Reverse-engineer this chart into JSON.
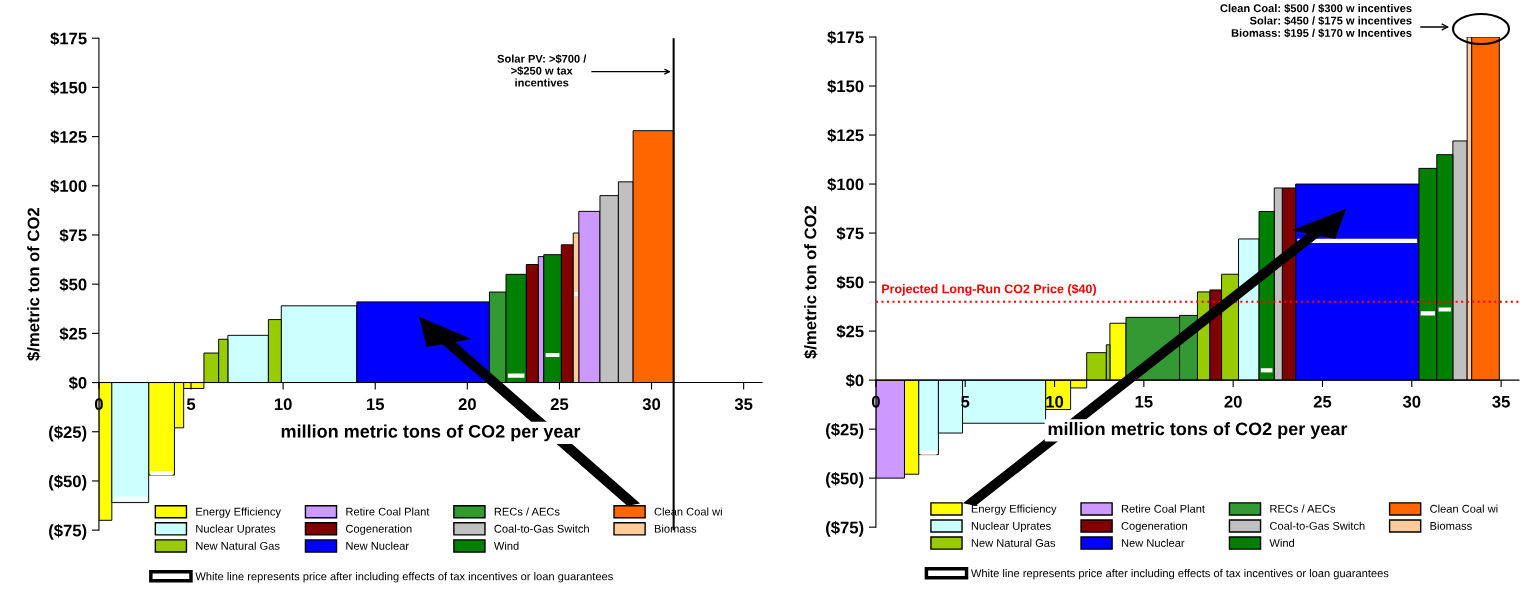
{
  "chart_data": [
    {
      "type": "histogram",
      "xlabel": "million metric tons of CO2 per year",
      "ylabel": "$/metric ton of CO2",
      "bins": [
        0,
        0.7,
        2.7,
        4.1,
        4.6,
        5.7,
        6.5,
        7.0,
        9.2,
        9.9,
        14.0,
        21.2,
        22.1,
        23.2,
        23.85,
        24.15,
        25.1,
        25.75,
        26.05,
        27.2,
        28.2,
        29.0,
        31.2
      ],
      "xlim": [
        0,
        36
      ],
      "xticks": [
        0,
        5,
        10,
        15,
        20,
        25,
        30,
        35
      ],
      "ylim": [
        -75,
        175
      ],
      "yticks": [
        {
          "value": 175,
          "label": "$175"
        },
        {
          "value": 150,
          "label": "$150"
        },
        {
          "value": 125,
          "label": "$125"
        },
        {
          "value": 100,
          "label": "$100"
        },
        {
          "value": 75,
          "label": "$75"
        },
        {
          "value": 50,
          "label": "$50"
        },
        {
          "value": 25,
          "label": "$25"
        },
        {
          "value": 0,
          "label": "$0"
        },
        {
          "value": -25,
          "label": "($25)"
        },
        {
          "value": -50,
          "label": "($50)"
        },
        {
          "value": -75,
          "label": "($75)"
        }
      ],
      "legend": "bottom",
      "series": [
        {
          "name": "Energy Efficiency",
          "color": "#ffff00",
          "values": [
            -70,
            null,
            -47,
            -23,
            -3,
            null,
            null,
            null,
            null,
            null,
            null,
            null,
            null,
            null,
            null,
            null,
            null,
            null,
            null,
            null,
            null,
            null
          ]
        },
        {
          "name": "Nuclear Uprates",
          "color": "#ccffff",
          "values": [
            null,
            -61,
            null,
            null,
            null,
            null,
            null,
            24,
            null,
            39,
            null,
            null,
            null,
            null,
            null,
            null,
            null,
            null,
            null,
            null,
            null,
            null
          ]
        },
        {
          "name": "New Natural Gas",
          "color": "#99cc00",
          "values": [
            null,
            null,
            null,
            null,
            null,
            15,
            22,
            null,
            32,
            null,
            null,
            null,
            null,
            null,
            null,
            null,
            null,
            null,
            null,
            null,
            null,
            null
          ]
        },
        {
          "name": "Retire Coal Plant",
          "color": "#cc99ff",
          "values": [
            null,
            null,
            null,
            null,
            null,
            null,
            null,
            null,
            null,
            null,
            null,
            null,
            null,
            null,
            64,
            null,
            null,
            null,
            87,
            null,
            null,
            null
          ]
        },
        {
          "name": "Cogeneration",
          "color": "#800000",
          "values": [
            null,
            null,
            null,
            null,
            null,
            null,
            null,
            null,
            null,
            null,
            null,
            null,
            null,
            60,
            null,
            null,
            70,
            null,
            null,
            null,
            null,
            null
          ]
        },
        {
          "name": "New Nuclear",
          "color": "#0000ff",
          "values": [
            null,
            null,
            null,
            null,
            null,
            null,
            null,
            null,
            null,
            null,
            41,
            null,
            null,
            null,
            null,
            null,
            null,
            null,
            null,
            null,
            null,
            null
          ]
        },
        {
          "name": "RECs / AECs",
          "color": "#339933",
          "values": [
            null,
            null,
            null,
            null,
            null,
            null,
            null,
            null,
            null,
            null,
            null,
            46,
            null,
            null,
            null,
            null,
            null,
            null,
            null,
            null,
            null,
            null
          ]
        },
        {
          "name": "Coal-to-Gas Switch",
          "color": "#c0c0c0",
          "values": [
            null,
            null,
            null,
            null,
            null,
            null,
            null,
            null,
            null,
            null,
            null,
            null,
            null,
            null,
            null,
            null,
            null,
            null,
            null,
            95,
            102,
            null
          ]
        },
        {
          "name": "Wind",
          "color": "#008000",
          "values": [
            null,
            null,
            null,
            null,
            null,
            null,
            null,
            null,
            null,
            null,
            null,
            null,
            55,
            null,
            null,
            65,
            null,
            null,
            null,
            null,
            null,
            null
          ]
        },
        {
          "name": "Clean Coal wi",
          "color": "#ff6600",
          "values": [
            null,
            null,
            null,
            null,
            null,
            null,
            null,
            null,
            null,
            null,
            null,
            null,
            null,
            null,
            null,
            null,
            null,
            null,
            null,
            null,
            null,
            128
          ]
        },
        {
          "name": "Biomass",
          "color": "#ffcc99",
          "values": [
            null,
            null,
            null,
            null,
            null,
            null,
            null,
            null,
            null,
            null,
            null,
            null,
            null,
            null,
            null,
            null,
            null,
            76,
            null,
            null,
            null,
            null
          ]
        },
        {
          "name": "White line represents price after including effects of tax incentives or loan guarantees",
          "type": "line",
          "color": "#ffffff",
          "x": [
            0.8,
            2.6
          ],
          "values": [
            -59,
            -59
          ]
        },
        {
          "type": "line",
          "color": "#ffffff",
          "x": [
            2.8,
            4.0
          ],
          "values": [
            -46,
            -46
          ]
        },
        {
          "type": "line",
          "color": "#ffffff",
          "x": [
            22.2,
            23.1
          ],
          "values": [
            3.5,
            3.5
          ]
        },
        {
          "type": "line",
          "color": "#ffffff",
          "x": [
            24.25,
            25.0
          ],
          "values": [
            14,
            14
          ]
        },
        {
          "type": "line",
          "color": "#ffffff",
          "x": [
            25.8,
            26.0
          ],
          "values": [
            45,
            45
          ]
        }
      ],
      "ref_lines": [
        {
          "axis": "x",
          "value": 31.2,
          "label": null,
          "color": "#000000",
          "line_style": "solid"
        }
      ],
      "annotations": [
        {
          "text": "Solar PV: >$700 /\n>$250 w tax\nincentives",
          "x": 31.2,
          "y": 158
        }
      ]
    },
    {
      "type": "histogram",
      "xlabel": "million metric tons of CO2 per year",
      "ylabel": "$/metric ton of CO2",
      "bins": [
        0,
        1.6,
        2.4,
        3.5,
        4.85,
        9.5,
        10.9,
        11.8,
        12.9,
        13.1,
        14.0,
        17.0,
        18.0,
        18.7,
        19.35,
        20.3,
        21.45,
        22.3,
        22.75,
        23.5,
        30.4,
        31.4,
        32.3,
        33.1,
        33.35,
        34.9
      ],
      "xlim": [
        0,
        36
      ],
      "xticks": [
        0,
        5,
        10,
        15,
        20,
        25,
        30,
        35
      ],
      "ylim": [
        -75,
        175
      ],
      "yticks": [
        {
          "value": 175,
          "label": "$175"
        },
        {
          "value": 150,
          "label": "$150"
        },
        {
          "value": 125,
          "label": "$125"
        },
        {
          "value": 100,
          "label": "$100"
        },
        {
          "value": 75,
          "label": "$75"
        },
        {
          "value": 50,
          "label": "$50"
        },
        {
          "value": 25,
          "label": "$25"
        },
        {
          "value": 0,
          "label": "$0"
        },
        {
          "value": -25,
          "label": "($25)"
        },
        {
          "value": -50,
          "label": "($50)"
        },
        {
          "value": -75,
          "label": "($75)"
        }
      ],
      "legend": "bottom",
      "series": [
        {
          "name": "Energy Efficiency",
          "color": "#ffff00",
          "values": [
            null,
            -48,
            null,
            null,
            null,
            -15,
            -4,
            null,
            null,
            29,
            null,
            null,
            null,
            null,
            null,
            null,
            null,
            null,
            null,
            null,
            null,
            null,
            null,
            null,
            null
          ]
        },
        {
          "name": "Nuclear Uprates",
          "color": "#ccffff",
          "values": [
            null,
            null,
            -38,
            -27,
            -22,
            null,
            null,
            null,
            null,
            null,
            null,
            null,
            null,
            null,
            null,
            72,
            null,
            null,
            null,
            null,
            null,
            null,
            null,
            null,
            null
          ]
        },
        {
          "name": "New Natural Gas",
          "color": "#99cc00",
          "values": [
            null,
            null,
            null,
            null,
            null,
            null,
            null,
            14,
            18,
            null,
            null,
            null,
            45,
            null,
            54,
            null,
            null,
            null,
            null,
            null,
            null,
            null,
            null,
            null,
            null
          ]
        },
        {
          "name": "Retire Coal Plant",
          "color": "#cc99ff",
          "values": [
            -50,
            null,
            null,
            null,
            null,
            null,
            null,
            null,
            null,
            null,
            null,
            null,
            null,
            null,
            null,
            null,
            null,
            null,
            null,
            null,
            null,
            null,
            null,
            null,
            null
          ]
        },
        {
          "name": "Cogeneration",
          "color": "#800000",
          "values": [
            null,
            null,
            null,
            null,
            null,
            null,
            null,
            null,
            null,
            null,
            null,
            null,
            null,
            46,
            null,
            null,
            null,
            null,
            98,
            null,
            null,
            null,
            null,
            null,
            null
          ]
        },
        {
          "name": "New Nuclear",
          "color": "#0000ff",
          "values": [
            null,
            null,
            null,
            null,
            null,
            null,
            null,
            null,
            null,
            null,
            null,
            null,
            null,
            null,
            null,
            null,
            null,
            null,
            null,
            100,
            null,
            null,
            null,
            null,
            null
          ]
        },
        {
          "name": "RECs / AECs",
          "color": "#339933",
          "values": [
            null,
            null,
            null,
            null,
            null,
            null,
            null,
            null,
            null,
            null,
            32,
            33,
            null,
            null,
            null,
            null,
            null,
            null,
            null,
            null,
            null,
            null,
            null,
            null,
            null
          ]
        },
        {
          "name": "Coal-to-Gas Switch",
          "color": "#c0c0c0",
          "values": [
            null,
            null,
            null,
            null,
            null,
            null,
            null,
            null,
            null,
            null,
            null,
            null,
            null,
            null,
            null,
            null,
            null,
            98,
            null,
            null,
            null,
            null,
            122,
            null,
            null
          ]
        },
        {
          "name": "Wind",
          "color": "#008000",
          "values": [
            null,
            null,
            null,
            null,
            null,
            null,
            null,
            null,
            null,
            null,
            null,
            null,
            null,
            null,
            null,
            null,
            86,
            null,
            null,
            null,
            108,
            115,
            null,
            null,
            null
          ]
        },
        {
          "name": "Clean Coal wi",
          "color": "#ff6600",
          "values": [
            null,
            null,
            null,
            null,
            null,
            null,
            null,
            null,
            null,
            null,
            null,
            null,
            null,
            null,
            null,
            null,
            null,
            null,
            null,
            null,
            null,
            null,
            null,
            null,
            175
          ]
        },
        {
          "name": "Biomass",
          "color": "#ffcc99",
          "values": [
            null,
            null,
            null,
            null,
            null,
            null,
            null,
            null,
            null,
            null,
            null,
            null,
            null,
            null,
            null,
            null,
            null,
            null,
            null,
            null,
            null,
            null,
            null,
            175,
            null
          ]
        },
        {
          "name": "White line represents price after including effects of tax incentives or loan guarantees",
          "type": "line",
          "color": "#ffffff",
          "x": [
            2.5,
            3.4
          ],
          "values": [
            -37,
            -37
          ]
        },
        {
          "type": "line",
          "color": "#ffffff",
          "x": [
            21.55,
            22.2
          ],
          "values": [
            5,
            5
          ]
        },
        {
          "type": "line",
          "color": "#ffffff",
          "x": [
            23.6,
            30.3
          ],
          "values": [
            71,
            71
          ]
        },
        {
          "type": "line",
          "color": "#ffffff",
          "x": [
            30.5,
            31.3
          ],
          "values": [
            34,
            34
          ]
        },
        {
          "type": "line",
          "color": "#ffffff",
          "x": [
            31.5,
            32.2
          ],
          "values": [
            36,
            36
          ]
        }
      ],
      "ref_lines": [
        {
          "axis": "y",
          "value": 40,
          "label": "Projected Long-Run CO2 Price ($40)",
          "color": "#ff0000",
          "line_style": "dotted"
        }
      ],
      "annotations": [
        "Clean Coal: $500 / $300 w incentives\nSolar: $450 / $175 w incentives\nBiomass: $195 / $170 w Incentives"
      ]
    }
  ]
}
